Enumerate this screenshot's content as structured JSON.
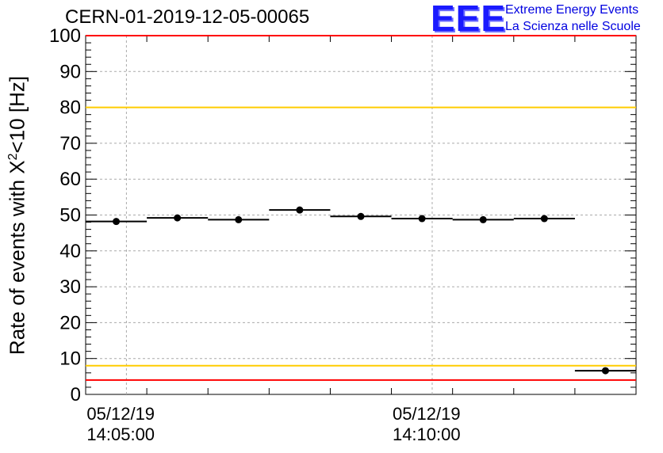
{
  "header": {
    "title": "CERN-01-2019-12-05-00065",
    "logo_text": "EEE",
    "logo_line1": "Extreme Energy Events",
    "logo_line2": "La Scienza nelle Scuole"
  },
  "colors": {
    "logo": "#1a1aff",
    "red_line": "#ff0000",
    "yellow_line": "#ffcc00",
    "grid": "#aaaaaa",
    "data": "#000000"
  },
  "chart_data": {
    "type": "scatter",
    "title": "CERN-01-2019-12-05-00065",
    "ylabel": "Rate of events with X²<10 [Hz]",
    "ylabel_parts": {
      "before": "Rate of events with X",
      "sup": "2",
      "after": "<10 [Hz]"
    },
    "xlabel": "",
    "ylim": [
      0,
      100
    ],
    "yticks": [
      0,
      10,
      20,
      30,
      40,
      50,
      60,
      70,
      80,
      90,
      100
    ],
    "xlim": [
      "2019-12-05 14:04:20",
      "2019-12-05 14:13:20"
    ],
    "xticks": [
      {
        "date": "05/12/19",
        "time": "14:05:00"
      },
      {
        "date": "05/12/19",
        "time": "14:10:00"
      }
    ],
    "grid": true,
    "bin_width_seconds": 60,
    "points": [
      {
        "x": "14:04:50",
        "y": 48.2
      },
      {
        "x": "14:05:50",
        "y": 49.2
      },
      {
        "x": "14:06:50",
        "y": 48.7
      },
      {
        "x": "14:07:50",
        "y": 51.4
      },
      {
        "x": "14:08:50",
        "y": 49.6
      },
      {
        "x": "14:09:50",
        "y": 49.0
      },
      {
        "x": "14:10:50",
        "y": 48.7
      },
      {
        "x": "14:11:50",
        "y": 49.0
      },
      {
        "x": "14:12:50",
        "y": 6.6
      }
    ],
    "reference_lines": [
      {
        "y": 100,
        "color": "#ff0000"
      },
      {
        "y": 80,
        "color": "#ffcc00"
      },
      {
        "y": 8,
        "color": "#ffcc00"
      },
      {
        "y": 4,
        "color": "#ff0000"
      }
    ]
  }
}
